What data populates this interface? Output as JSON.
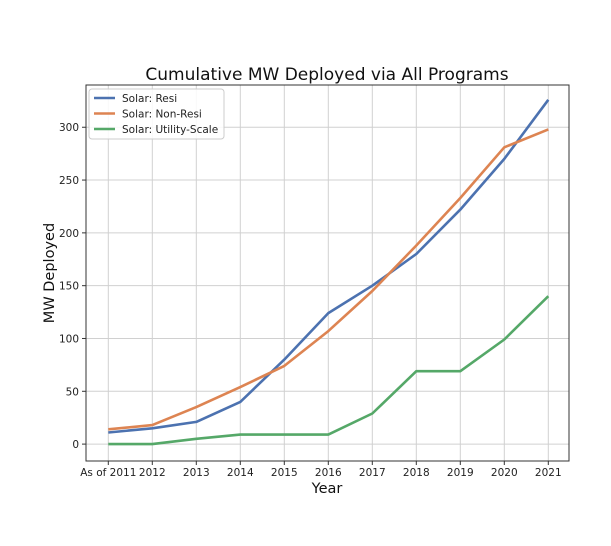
{
  "chart_data": {
    "type": "line",
    "title": "Cumulative MW Deployed via All Programs",
    "xlabel": "Year",
    "ylabel": "MW Deployed",
    "categories": [
      "As of 2011",
      "2012",
      "2013",
      "2014",
      "2015",
      "2016",
      "2017",
      "2018",
      "2019",
      "2020",
      "2021"
    ],
    "yticks": [
      "0",
      "50",
      "100",
      "150",
      "200",
      "250",
      "300"
    ],
    "ytick_values": [
      0,
      50,
      100,
      150,
      200,
      250,
      300
    ],
    "ylim": [
      -16,
      340
    ],
    "grid": true,
    "legend_position": "top-left",
    "series": [
      {
        "name": "Solar: Resi",
        "color": "#4c72b0",
        "values": [
          11,
          15,
          21,
          40,
          80,
          124,
          150,
          180,
          222,
          270,
          326
        ]
      },
      {
        "name": "Solar: Non-Resi",
        "color": "#dd8452",
        "values": [
          14,
          18,
          35,
          54,
          74,
          107,
          145,
          188,
          233,
          281,
          298
        ]
      },
      {
        "name": "Solar: Utility-Scale",
        "color": "#55a868",
        "values": [
          0,
          0,
          5,
          9,
          9,
          9,
          29,
          69,
          69,
          99,
          140
        ]
      }
    ]
  }
}
